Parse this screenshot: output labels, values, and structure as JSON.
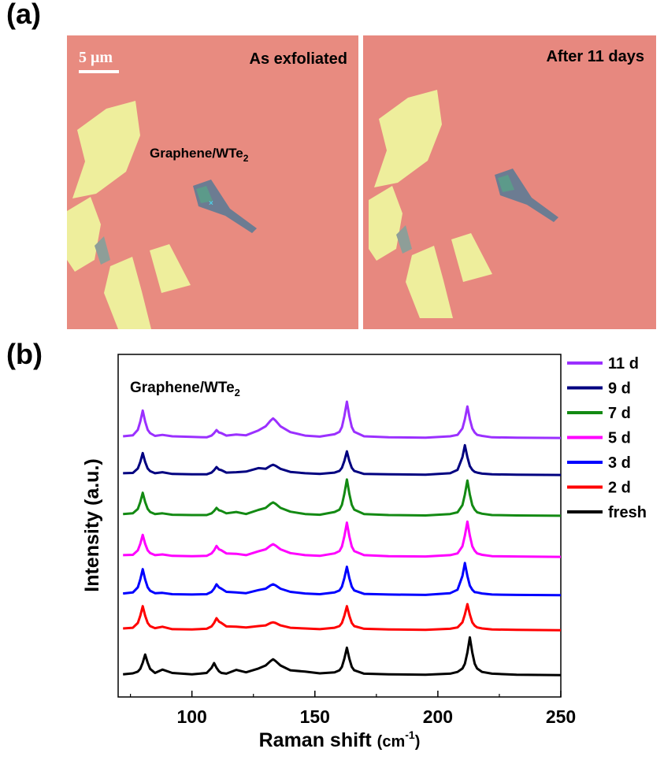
{
  "panel_labels": [
    "(a)",
    "(b)"
  ],
  "images": [
    {
      "caption": "As exfoliated",
      "scale_bar": "5 μm",
      "annotation": {
        "text": "Graphene/WTe",
        "sub": "2"
      }
    },
    {
      "caption": "After 11 days"
    }
  ],
  "chart_data": {
    "type": "line",
    "annotation": {
      "text": "Graphene/WTe",
      "sub": "2"
    },
    "xlabel": {
      "text": "Raman shift ",
      "unit": "(cm",
      "sup": "-1",
      "close": ")"
    },
    "ylabel": "Intensity (a.u.)",
    "xlim": [
      70,
      250
    ],
    "ylim": [
      0,
      100
    ],
    "xticks": [
      100,
      150,
      200,
      250
    ],
    "xminorticks": [
      75,
      125,
      175,
      225
    ],
    "x": [
      72,
      76,
      78,
      79,
      80,
      81,
      82,
      83,
      85,
      88,
      92,
      100,
      106,
      108,
      109,
      110,
      111,
      112,
      114,
      118,
      122,
      127,
      130,
      132,
      133,
      134,
      136,
      140,
      146,
      152,
      158,
      160,
      161,
      162,
      163,
      164,
      165,
      166,
      170,
      180,
      195,
      205,
      208,
      210,
      211,
      212,
      213,
      214,
      215,
      216,
      218,
      222,
      232,
      250
    ],
    "series": [
      {
        "name": "11 d",
        "color": "#9b30ff",
        "values": [
          76.1,
          76.4,
          78.0,
          80.4,
          83.6,
          80.4,
          78.0,
          77.0,
          76.2,
          76.5,
          76.1,
          75.9,
          75.8,
          76.3,
          77.0,
          77.9,
          77.2,
          77.0,
          76.3,
          76.6,
          76.4,
          77.8,
          79.0,
          80.7,
          81.3,
          80.7,
          79.0,
          77.3,
          76.3,
          76.0,
          76.7,
          77.4,
          78.8,
          82.0,
          86.2,
          82.0,
          78.8,
          77.4,
          76.1,
          75.8,
          75.7,
          76.1,
          76.5,
          78.4,
          81.1,
          84.8,
          81.1,
          78.4,
          77.2,
          76.5,
          76.2,
          75.8,
          75.7,
          75.6
        ]
      },
      {
        "name": "9 d",
        "color": "#000080",
        "values": [
          65.3,
          65.4,
          66.7,
          68.6,
          71.2,
          68.6,
          66.7,
          65.9,
          65.3,
          65.6,
          65.1,
          65.0,
          65.0,
          65.5,
          66.2,
          67.1,
          66.4,
          66.2,
          65.5,
          65.6,
          65.8,
          66.8,
          66.6,
          67.5,
          67.8,
          67.5,
          66.6,
          65.7,
          65.3,
          65.1,
          65.5,
          66.0,
          66.9,
          68.9,
          71.7,
          68.9,
          66.9,
          66.0,
          65.1,
          65.0,
          64.9,
          65.3,
          66.3,
          70.0,
          73.5,
          70.0,
          67.4,
          66.3,
          65.7,
          65.5,
          65.2,
          65.0,
          64.9,
          64.8
        ]
      },
      {
        "name": "7 d",
        "color": "#138a13",
        "values": [
          53.4,
          53.6,
          54.9,
          56.9,
          59.6,
          56.9,
          54.9,
          54.0,
          53.4,
          53.6,
          53.2,
          53.1,
          53.1,
          53.6,
          54.3,
          55.2,
          54.5,
          54.3,
          53.6,
          54.0,
          53.4,
          54.6,
          55.2,
          56.4,
          56.8,
          56.4,
          55.2,
          54.1,
          53.4,
          53.2,
          54.0,
          54.7,
          56.1,
          59.3,
          63.5,
          59.3,
          56.1,
          54.7,
          53.4,
          53.1,
          53.0,
          53.4,
          53.9,
          56.0,
          59.1,
          63.2,
          59.1,
          56.0,
          54.7,
          53.9,
          53.5,
          53.1,
          53.0,
          52.9
        ]
      },
      {
        "name": "5 d",
        "color": "#ff00ff",
        "values": [
          41.4,
          41.5,
          42.8,
          44.7,
          47.3,
          44.7,
          42.8,
          42.0,
          41.4,
          41.6,
          41.2,
          41.1,
          41.2,
          41.9,
          42.8,
          44.1,
          43.1,
          42.8,
          41.9,
          41.8,
          41.4,
          42.5,
          43.1,
          44.2,
          44.6,
          44.2,
          43.1,
          42.0,
          41.4,
          41.2,
          41.9,
          42.6,
          43.9,
          46.9,
          50.9,
          46.9,
          43.9,
          42.6,
          41.4,
          41.1,
          41.0,
          41.4,
          41.9,
          44.0,
          47.1,
          51.2,
          47.1,
          44.0,
          42.7,
          41.9,
          41.5,
          41.1,
          41.0,
          40.9
        ]
      },
      {
        "name": "3 d",
        "color": "#0000ff",
        "values": [
          30.2,
          30.5,
          32.0,
          34.3,
          37.3,
          34.3,
          32.0,
          31.0,
          30.3,
          30.4,
          30.0,
          29.9,
          30.0,
          30.7,
          31.6,
          32.9,
          32.0,
          31.6,
          30.7,
          30.5,
          30.3,
          31.2,
          31.6,
          32.6,
          32.9,
          32.6,
          31.6,
          30.7,
          30.2,
          30.0,
          30.5,
          31.1,
          32.2,
          34.7,
          38.0,
          34.7,
          32.2,
          31.1,
          30.1,
          29.9,
          29.8,
          30.3,
          31.3,
          35.3,
          39.1,
          35.3,
          32.5,
          31.3,
          30.6,
          30.5,
          30.2,
          29.9,
          29.8,
          29.7
        ]
      },
      {
        "name": "2 d",
        "color": "#ff0000",
        "values": [
          20.0,
          20.2,
          21.6,
          23.7,
          26.5,
          23.7,
          21.6,
          20.7,
          20.1,
          20.5,
          19.8,
          19.7,
          19.9,
          20.6,
          21.6,
          23.0,
          22.0,
          21.6,
          20.6,
          20.5,
          20.3,
          20.7,
          20.9,
          21.6,
          21.8,
          21.6,
          20.9,
          20.2,
          20.0,
          19.8,
          20.2,
          20.7,
          21.6,
          23.7,
          26.5,
          23.7,
          21.6,
          20.7,
          19.9,
          19.7,
          19.6,
          19.9,
          20.3,
          21.8,
          24.1,
          27.1,
          24.1,
          21.8,
          20.8,
          20.3,
          20.0,
          19.7,
          19.6,
          19.5
        ]
      },
      {
        "name": "fresh",
        "color": "#000000",
        "values": [
          6.6,
          6.9,
          7.4,
          8.2,
          10.0,
          12.4,
          10.0,
          8.2,
          7.0,
          8.0,
          7.0,
          6.6,
          7.0,
          8.5,
          9.9,
          8.5,
          7.5,
          7.0,
          6.8,
          7.9,
          7.2,
          8.3,
          9.2,
          10.5,
          11.0,
          10.5,
          9.2,
          7.8,
          7.4,
          6.9,
          7.2,
          7.8,
          8.8,
          11.2,
          14.4,
          11.2,
          8.8,
          7.8,
          6.8,
          6.6,
          6.5,
          6.8,
          7.3,
          8.3,
          9.7,
          13.0,
          17.4,
          13.0,
          9.7,
          8.3,
          7.3,
          6.8,
          6.5,
          6.4
        ]
      }
    ]
  }
}
